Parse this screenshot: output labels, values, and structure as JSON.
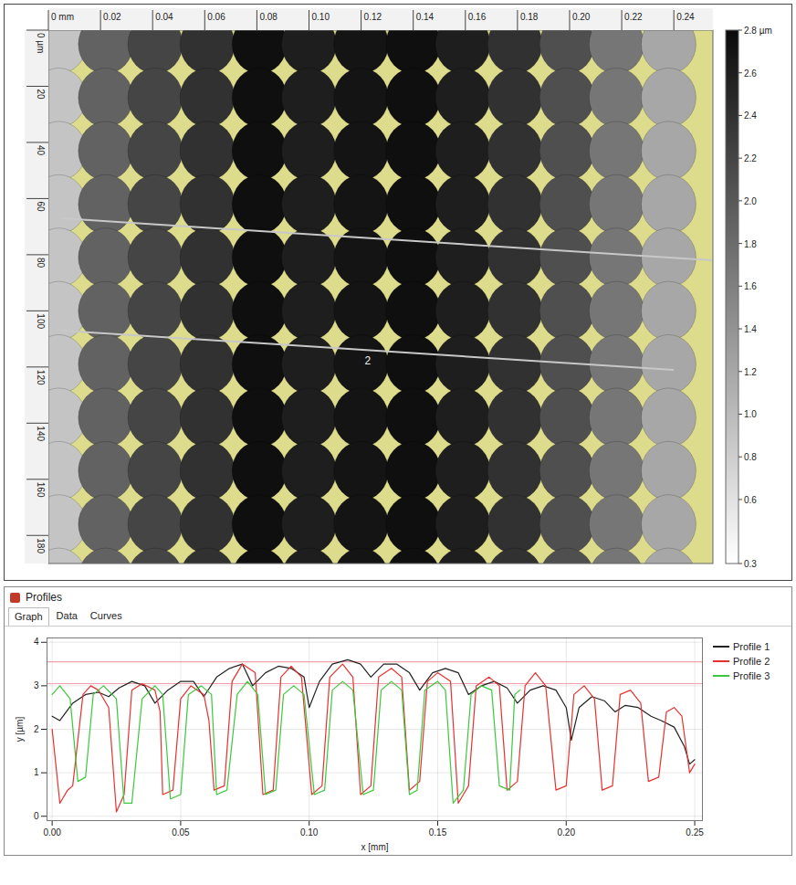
{
  "heightmap": {
    "xlim": [
      0,
      0.255
    ],
    "ylim": [
      0,
      190
    ],
    "xticks": [
      {
        "value": 0,
        "label": "0 mm"
      },
      0.02,
      0.04,
      0.06,
      0.08,
      {
        "value": 0.1,
        "label": "0.10"
      },
      0.12,
      0.14,
      0.16,
      0.18,
      {
        "value": 0.2,
        "label": "0.20"
      },
      0.22,
      0.24
    ],
    "yticks": [
      {
        "value": 0,
        "label": "0 µm"
      },
      20,
      40,
      60,
      80,
      100,
      120,
      140,
      160,
      180
    ],
    "color": "#dcdc8c",
    "spot_diameter": 0.021,
    "rows": [
      5,
      24,
      43,
      62,
      81,
      100,
      119,
      138,
      157,
      176,
      195
    ],
    "columns": {
      "x": [
        0.004,
        0.022,
        0.041,
        0.061,
        0.081,
        0.1,
        0.12,
        0.14,
        0.159,
        0.179,
        0.199,
        0.218,
        0.238
      ],
      "height": [
        0.9,
        1.9,
        2.2,
        2.4,
        2.75,
        2.6,
        2.7,
        2.75,
        2.6,
        2.4,
        2.1,
        1.7,
        1.2
      ]
    },
    "colorbar": {
      "range": [
        0.3,
        2.8
      ],
      "ticks": [
        {
          "value": 2.8,
          "label": "2.8 µm"
        },
        2.6,
        2.4,
        2.2,
        {
          "value": 2,
          "label": "2.0"
        },
        1.8,
        1.6,
        1.4,
        1.2,
        {
          "value": 1,
          "label": "1.0"
        },
        0.8,
        0.6,
        0.3
      ]
    },
    "profile_lines": [
      {
        "x": [
          0.005,
          0.255
        ],
        "y": [
          67,
          82
        ]
      },
      {
        "label": "2",
        "x": [
          0.005,
          0.24
        ],
        "y": [
          107,
          121
        ]
      }
    ]
  },
  "chart_data": {
    "type": "line",
    "title": "Profiles",
    "tabs": [
      "Graph",
      "Data",
      "Curves"
    ],
    "x_label": "x [mm]",
    "y_label": "y [µm]",
    "xlim": [
      -0.002,
      0.253
    ],
    "ylim": [
      -0.1,
      4.1
    ],
    "xticks": [
      {
        "value": 0,
        "label": "0.00"
      },
      0.05,
      {
        "value": 0.1,
        "label": "0.10"
      },
      0.15,
      {
        "value": 0.2,
        "label": "0.20"
      },
      0.25
    ],
    "yticks": [
      0,
      1,
      2,
      3,
      4
    ],
    "grid": true,
    "legend": "right",
    "reference_lines": [
      3.55,
      3.05
    ],
    "reference_color": "#f0a0a8",
    "series": [
      {
        "name": "Profile 1",
        "color": "#222222",
        "x": [
          0,
          0.003,
          0.008,
          0.013,
          0.018,
          0.022,
          0.026,
          0.031,
          0.036,
          0.04,
          0.045,
          0.05,
          0.055,
          0.059,
          0.064,
          0.069,
          0.074,
          0.078,
          0.083,
          0.088,
          0.093,
          0.098,
          0.1,
          0.104,
          0.109,
          0.115,
          0.12,
          0.124,
          0.129,
          0.134,
          0.139,
          0.143,
          0.148,
          0.153,
          0.158,
          0.162,
          0.167,
          0.172,
          0.177,
          0.181,
          0.186,
          0.191,
          0.196,
          0.2,
          0.202,
          0.205,
          0.21,
          0.215,
          0.219,
          0.223,
          0.228,
          0.233,
          0.237,
          0.242,
          0.246,
          0.248,
          0.25
        ],
        "values": [
          2.3,
          2.2,
          2.6,
          2.8,
          2.85,
          2.75,
          2.95,
          3.1,
          3.0,
          2.6,
          2.9,
          3.1,
          3.1,
          2.75,
          3.2,
          3.4,
          3.5,
          3.0,
          3.3,
          3.45,
          3.4,
          3.2,
          2.5,
          3.1,
          3.5,
          3.6,
          3.5,
          3.2,
          3.5,
          3.5,
          3.3,
          2.9,
          3.3,
          3.4,
          3.3,
          2.8,
          3.0,
          3.1,
          2.95,
          2.6,
          2.9,
          3.0,
          2.9,
          2.5,
          1.75,
          2.5,
          2.75,
          2.65,
          2.4,
          2.55,
          2.5,
          2.3,
          2.2,
          2.05,
          1.6,
          1.2,
          1.3
        ]
      },
      {
        "name": "Profile 2",
        "color": "#e8312f",
        "x": [
          0,
          0.003,
          0.006,
          0.008,
          0.012,
          0.015,
          0.018,
          0.022,
          0.025,
          0.028,
          0.031,
          0.035,
          0.04,
          0.042,
          0.043,
          0.047,
          0.05,
          0.054,
          0.059,
          0.061,
          0.063,
          0.067,
          0.07,
          0.074,
          0.079,
          0.082,
          0.086,
          0.089,
          0.093,
          0.097,
          0.101,
          0.105,
          0.108,
          0.113,
          0.117,
          0.12,
          0.124,
          0.127,
          0.132,
          0.136,
          0.139,
          0.143,
          0.146,
          0.15,
          0.155,
          0.158,
          0.162,
          0.165,
          0.17,
          0.174,
          0.177,
          0.181,
          0.184,
          0.188,
          0.192,
          0.196,
          0.2,
          0.203,
          0.207,
          0.211,
          0.214,
          0.218,
          0.221,
          0.225,
          0.229,
          0.232,
          0.236,
          0.239,
          0.242,
          0.245,
          0.248,
          0.25
        ],
        "values": [
          2.0,
          0.3,
          0.6,
          0.7,
          2.8,
          3.0,
          2.9,
          2.5,
          0.1,
          0.5,
          2.9,
          3.05,
          2.9,
          2.4,
          0.5,
          0.6,
          2.7,
          3.0,
          2.8,
          2.2,
          0.6,
          0.7,
          3.1,
          3.5,
          3.3,
          0.5,
          0.6,
          3.2,
          3.45,
          3.2,
          0.5,
          0.7,
          3.2,
          3.5,
          3.2,
          0.5,
          0.7,
          3.2,
          3.4,
          3.2,
          0.6,
          0.8,
          3.1,
          3.3,
          3.1,
          0.3,
          0.7,
          3.0,
          3.2,
          3.0,
          0.6,
          0.8,
          3.0,
          3.3,
          3.0,
          0.6,
          0.7,
          2.8,
          3.0,
          2.7,
          0.6,
          0.7,
          2.8,
          2.9,
          2.6,
          0.8,
          0.9,
          2.4,
          2.5,
          2.3,
          1.0,
          1.2
        ]
      },
      {
        "name": "Profile 3",
        "color": "#3cc83c",
        "x": [
          0,
          0.003,
          0.007,
          0.01,
          0.013,
          0.016,
          0.02,
          0.025,
          0.028,
          0.031,
          0.035,
          0.04,
          0.043,
          0.046,
          0.05,
          0.053,
          0.058,
          0.062,
          0.064,
          0.068,
          0.072,
          0.076,
          0.08,
          0.083,
          0.087,
          0.09,
          0.094,
          0.098,
          0.102,
          0.106,
          0.109,
          0.113,
          0.117,
          0.121,
          0.125,
          0.128,
          0.132,
          0.136,
          0.139,
          0.142,
          0.145,
          0.15,
          0.153,
          0.156,
          0.16,
          0.163,
          0.167,
          0.171,
          0.174,
          0.178,
          0.18,
          0.182
        ],
        "values": [
          2.8,
          3.0,
          2.7,
          0.8,
          0.9,
          2.8,
          3.0,
          2.7,
          0.3,
          0.3,
          2.7,
          3.0,
          2.8,
          0.4,
          0.5,
          2.8,
          3.0,
          2.8,
          0.5,
          0.6,
          2.8,
          3.1,
          2.8,
          0.5,
          0.6,
          2.8,
          3.0,
          2.8,
          0.5,
          0.6,
          2.9,
          3.1,
          2.9,
          0.5,
          0.6,
          2.9,
          3.1,
          2.9,
          0.5,
          0.6,
          2.9,
          3.1,
          2.9,
          0.3,
          0.6,
          2.8,
          3.0,
          2.9,
          0.7,
          0.6,
          2.8,
          2.9
        ]
      }
    ]
  }
}
